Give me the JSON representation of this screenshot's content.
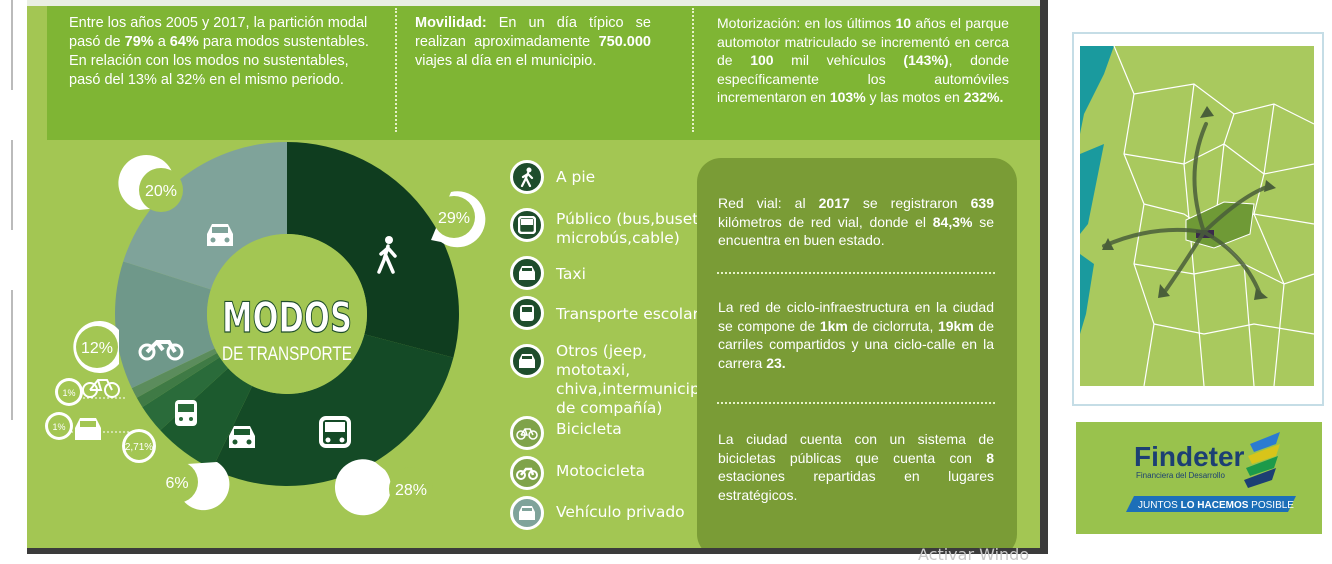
{
  "top": {
    "col1": {
      "t1": "Entre los años 2005 y 2017, la partición modal pasó de ",
      "b1": "79%",
      "t2": " a ",
      "b2": "64%",
      "t3": " para modos sustentables. En relación con los modos no sustentables, pasó del 13% al 32% en el mismo periodo."
    },
    "col2": {
      "b1": "Movilidad:",
      "t1": " En un día típico se realizan aproximadamente ",
      "b2": "750.000",
      "t2": " viajes al día en el municipio."
    },
    "col3": {
      "t1": "Motorización: en los últimos ",
      "b1": "10",
      "t2": " años el parque automotor matriculado se incrementó en cerca de ",
      "b2": "100",
      "t3": " mil vehículos ",
      "b3": "(143%)",
      "t4": ", donde específicamente los automóviles incrementaron en ",
      "b4": "103%",
      "t5": " y las motos en ",
      "b5": "232%."
    }
  },
  "donut": {
    "title": "MODOS",
    "subtitle": "DE TRANSPORTE",
    "labels": {
      "walk": "29%",
      "bus": "28%",
      "taxi": "6%",
      "school": "2,71%",
      "others": "1%",
      "bike": "1%",
      "moto": "12%",
      "car": "20%"
    }
  },
  "chart_data": {
    "type": "pie",
    "title": "MODOS DE TRANSPORTE",
    "categories": [
      "A pie",
      "Público",
      "Taxi",
      "Transporte escolar",
      "Otros",
      "Bicicleta",
      "Motocicleta",
      "Vehículo privado"
    ],
    "values": [
      29,
      28,
      6,
      2.71,
      1,
      1,
      12,
      20
    ]
  },
  "legend": [
    {
      "icon": "walk-icon",
      "label": "A pie"
    },
    {
      "icon": "bus-icon",
      "label": "Público (bus,buseta, microbús,cable)"
    },
    {
      "icon": "taxi-icon",
      "label": "Taxi"
    },
    {
      "icon": "school-bus-icon",
      "label": "Transporte escolar"
    },
    {
      "icon": "other-vehicle-icon",
      "label": "Otros (jeep, mototaxi, chiva,intermunicipal, de compañía)"
    },
    {
      "icon": "bicycle-icon",
      "label": "Bicicleta"
    },
    {
      "icon": "motorcycle-icon",
      "label": "Motocicleta"
    },
    {
      "icon": "car-icon",
      "label": "Vehículo privado"
    }
  ],
  "info": {
    "p1": {
      "t1": "Red vial: al ",
      "b1": "2017",
      "t2": " se registraron ",
      "b2": "639",
      "t3": " kilómetros de red vial, donde el ",
      "b3": "84,3%",
      "t4": " se encuentra en buen estado."
    },
    "p2": {
      "t1": "La red de ciclo-infraestructura en la ciudad se compone de ",
      "b1": "1km",
      "t2": " de ciclorruta, ",
      "b2": "19km",
      "t3": " de carriles compartidos y una ciclo-calle en la carrera ",
      "b3": "23."
    },
    "p3": {
      "t1": "La ciudad cuenta con un sistema de bicicletas públicas que cuenta con ",
      "b1": "8",
      "t2": " estaciones repartidas en lugares estratégicos."
    }
  },
  "brand": {
    "name": "Findeter",
    "tagline": "Financiera del Desarrollo",
    "slogan_pre": "JUNTOS ",
    "slogan_bold": "LO HACEMOS",
    "slogan_post": " POSIBLE"
  },
  "watermark": "Activar Windo",
  "colors": {
    "dark_green": "#0f3d1f",
    "mid_green": "#1c5a2e",
    "light_green": "#a3c653",
    "band_green": "#7fb534",
    "panel_green": "#7a9c36"
  }
}
